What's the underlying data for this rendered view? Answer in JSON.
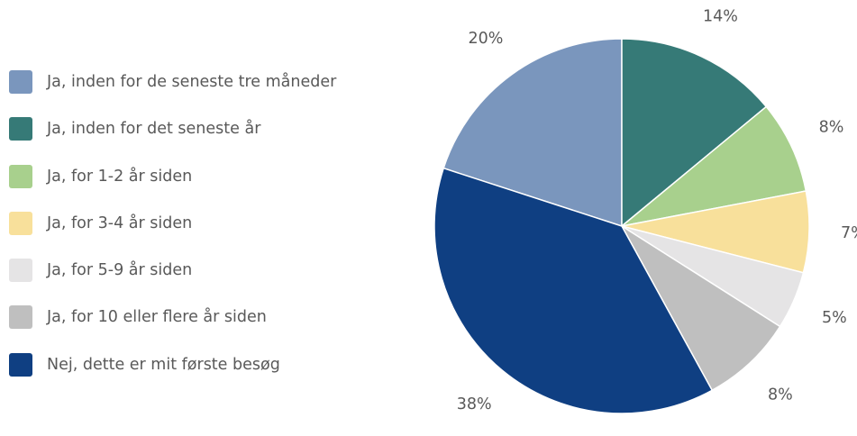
{
  "chart_data": {
    "type": "pie",
    "categories": [
      "Ja, inden for de seneste tre måneder",
      "Ja, inden for det seneste år",
      "Ja, for 1-2 år siden",
      "Ja, for 3-4 år siden",
      "Ja, for 5-9 år siden",
      "Ja, for 10 eller flere år siden",
      "Nej, dette er mit første besøg"
    ],
    "values": [
      20,
      14,
      8,
      7,
      5,
      8,
      38
    ],
    "data_labels": [
      "20%",
      "14%",
      "8%",
      "7%",
      "5%",
      "8%",
      "38%"
    ],
    "colors": [
      "#7a96bd",
      "#367a77",
      "#a8d08d",
      "#f8e09b",
      "#e5e4e5",
      "#bfbfbf",
      "#0f3f82"
    ],
    "legend_position": "left"
  }
}
